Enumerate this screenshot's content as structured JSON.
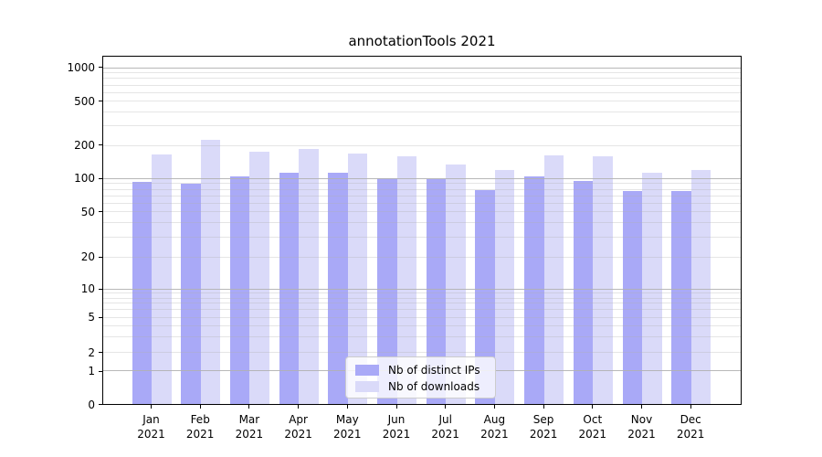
{
  "chart_data": {
    "type": "bar",
    "title": "annotationTools 2021",
    "categories": [
      {
        "month": "Jan",
        "year": "2021"
      },
      {
        "month": "Feb",
        "year": "2021"
      },
      {
        "month": "Mar",
        "year": "2021"
      },
      {
        "month": "Apr",
        "year": "2021"
      },
      {
        "month": "May",
        "year": "2021"
      },
      {
        "month": "Jun",
        "year": "2021"
      },
      {
        "month": "Jul",
        "year": "2021"
      },
      {
        "month": "Aug",
        "year": "2021"
      },
      {
        "month": "Sep",
        "year": "2021"
      },
      {
        "month": "Oct",
        "year": "2021"
      },
      {
        "month": "Nov",
        "year": "2021"
      },
      {
        "month": "Dec",
        "year": "2021"
      }
    ],
    "series": [
      {
        "name": "Nb of distinct IPs",
        "color": "#a9a9f7",
        "values": [
          93,
          90,
          105,
          113,
          112,
          100,
          98,
          79,
          105,
          95,
          77,
          77
        ]
      },
      {
        "name": "Nb of downloads",
        "color": "#dadaf9",
        "values": [
          166,
          225,
          174,
          184,
          168,
          158,
          135,
          119,
          162,
          159,
          114,
          120
        ]
      }
    ],
    "y_scale": "symlog",
    "y_ticks": [
      0,
      1,
      2,
      5,
      10,
      20,
      50,
      100,
      200,
      500,
      1000
    ],
    "ylim": [
      0,
      1250
    ],
    "xlabel": "",
    "ylabel": "",
    "grid": "both",
    "legend_position": "lower center"
  }
}
